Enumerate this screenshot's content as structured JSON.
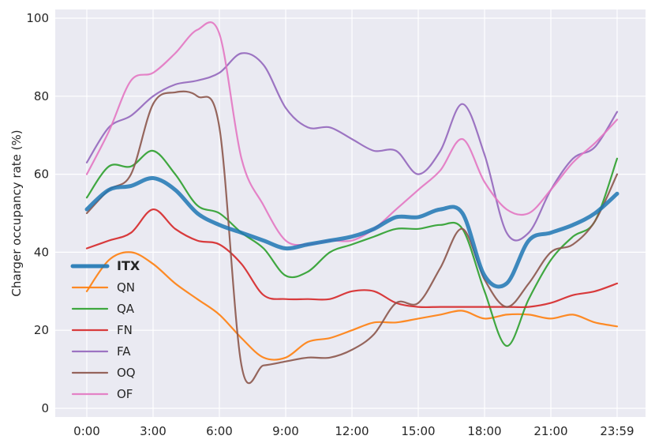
{
  "chart_data": {
    "type": "line",
    "title": "",
    "xlabel": "",
    "ylabel": "Charger occupancy rate (%)",
    "ylim": [
      0,
      100
    ],
    "y_ticks": [
      0,
      20,
      40,
      60,
      80,
      100
    ],
    "x_ticks": [
      "0:00",
      "3:00",
      "6:00",
      "9:00",
      "12:00",
      "15:00",
      "18:00",
      "21:00",
      "23:59"
    ],
    "x_tick_hours": [
      0,
      3,
      6,
      9,
      12,
      15,
      18,
      21,
      24
    ],
    "xlim_hours": [
      0,
      24
    ],
    "grid": true,
    "legend_position": "middle-left",
    "x_hours": [
      0,
      1,
      2,
      3,
      4,
      5,
      6,
      7,
      8,
      9,
      10,
      11,
      12,
      13,
      14,
      15,
      16,
      17,
      18,
      19,
      20,
      21,
      22,
      23,
      24
    ],
    "series": [
      {
        "name": "ITX",
        "color": "#1f77b4",
        "bold": true,
        "values": [
          51,
          56,
          57,
          59,
          56,
          50,
          47,
          45,
          43,
          41,
          42,
          43,
          44,
          46,
          49,
          49,
          51,
          50,
          34,
          32,
          43,
          45,
          47,
          50,
          55
        ]
      },
      {
        "name": "QN",
        "color": "#ff7f0e",
        "values": [
          30,
          38,
          40,
          37,
          32,
          28,
          24,
          18,
          13,
          13,
          17,
          18,
          20,
          22,
          22,
          23,
          24,
          25,
          23,
          24,
          24,
          23,
          24,
          22,
          21
        ]
      },
      {
        "name": "QA",
        "color": "#2ca02c",
        "values": [
          54,
          62,
          62,
          66,
          60,
          52,
          50,
          45,
          41,
          34,
          35,
          40,
          42,
          44,
          46,
          46,
          47,
          46,
          30,
          16,
          28,
          38,
          44,
          48,
          64
        ]
      },
      {
        "name": "FN",
        "color": "#d62728",
        "values": [
          41,
          43,
          45,
          51,
          46,
          43,
          42,
          37,
          29,
          28,
          28,
          28,
          30,
          30,
          27,
          26,
          26,
          26,
          26,
          26,
          26,
          27,
          29,
          30,
          32
        ]
      },
      {
        "name": "FA",
        "color": "#9467bd",
        "values": [
          63,
          72,
          75,
          80,
          83,
          84,
          86,
          91,
          88,
          77,
          72,
          72,
          69,
          66,
          66,
          60,
          66,
          78,
          65,
          45,
          45,
          56,
          64,
          67,
          76
        ]
      },
      {
        "name": "OQ",
        "color": "#8c564b",
        "values": [
          50,
          56,
          60,
          78,
          81,
          80,
          72,
          11,
          11,
          12,
          13,
          13,
          15,
          19,
          27,
          27,
          36,
          46,
          33,
          26,
          32,
          40,
          42,
          48,
          60
        ]
      },
      {
        "name": "OF",
        "color": "#e377c2",
        "values": [
          60,
          71,
          84,
          86,
          91,
          97,
          96,
          64,
          52,
          43,
          42,
          43,
          43,
          46,
          51,
          56,
          61,
          69,
          58,
          51,
          50,
          56,
          63,
          68,
          74
        ]
      }
    ]
  }
}
